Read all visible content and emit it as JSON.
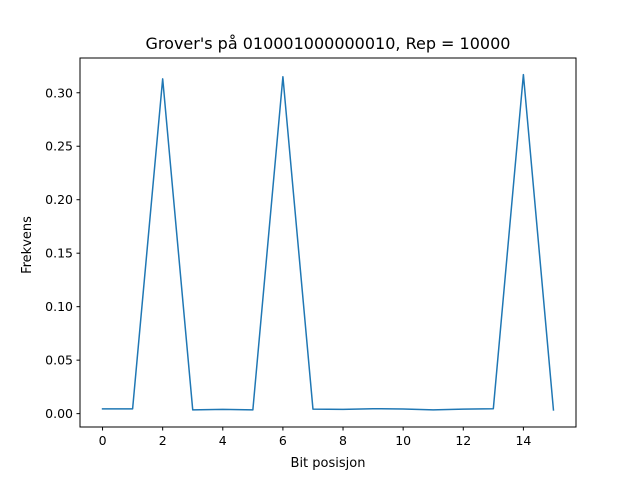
{
  "chart_data": {
    "type": "line",
    "title": "Grover's på 010001000000010, Rep = 10000",
    "xlabel": "Bit posisjon",
    "ylabel": "Frekvens",
    "xlim": [
      -0.75,
      15.75
    ],
    "ylim": [
      -0.0125,
      0.3325
    ],
    "x_ticks": [
      0,
      2,
      4,
      6,
      8,
      10,
      12,
      14
    ],
    "x_tick_labels": [
      "0",
      "2",
      "4",
      "6",
      "8",
      "10",
      "12",
      "14"
    ],
    "y_ticks": [
      0.0,
      0.05,
      0.1,
      0.15,
      0.2,
      0.25,
      0.3
    ],
    "y_tick_labels": [
      "0.00",
      "0.05",
      "0.10",
      "0.15",
      "0.20",
      "0.25",
      "0.30"
    ],
    "grid": false,
    "legend": null,
    "series": [
      {
        "color": "#1f77b4",
        "x": [
          0,
          1,
          2,
          3,
          4,
          5,
          6,
          7,
          8,
          9,
          10,
          11,
          12,
          13,
          14,
          15
        ],
        "y": [
          0.0045,
          0.0045,
          0.313,
          0.0035,
          0.004,
          0.0035,
          0.315,
          0.0042,
          0.004,
          0.0046,
          0.0043,
          0.0035,
          0.0042,
          0.0046,
          0.317,
          0.0035
        ]
      }
    ]
  }
}
